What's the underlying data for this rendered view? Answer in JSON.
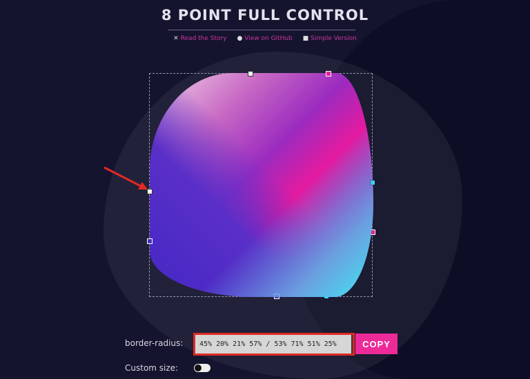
{
  "header": {
    "title": "8 POINT FULL CONTROL",
    "links": [
      {
        "icon": "x-icon",
        "label": "Read the Story"
      },
      {
        "icon": "github-icon",
        "label": "View on GitHub"
      },
      {
        "icon": "square-icon",
        "label": "Simple Version"
      }
    ]
  },
  "editor": {
    "border_radius": "45% 20% 21% 57% / 53% 71% 51% 25%",
    "colors": {
      "top_left": "#ffffff",
      "top_right": "#e4208f",
      "bottom_right": "#2fe2ea",
      "bottom_left": "#4330b8"
    }
  },
  "controls": {
    "border_radius_label": "border-radius:",
    "border_radius_value": "45% 20% 21% 57% / 53% 71% 51% 25%",
    "copy_label": "COPY",
    "custom_size_label": "Custom size:",
    "custom_size_on": false
  }
}
